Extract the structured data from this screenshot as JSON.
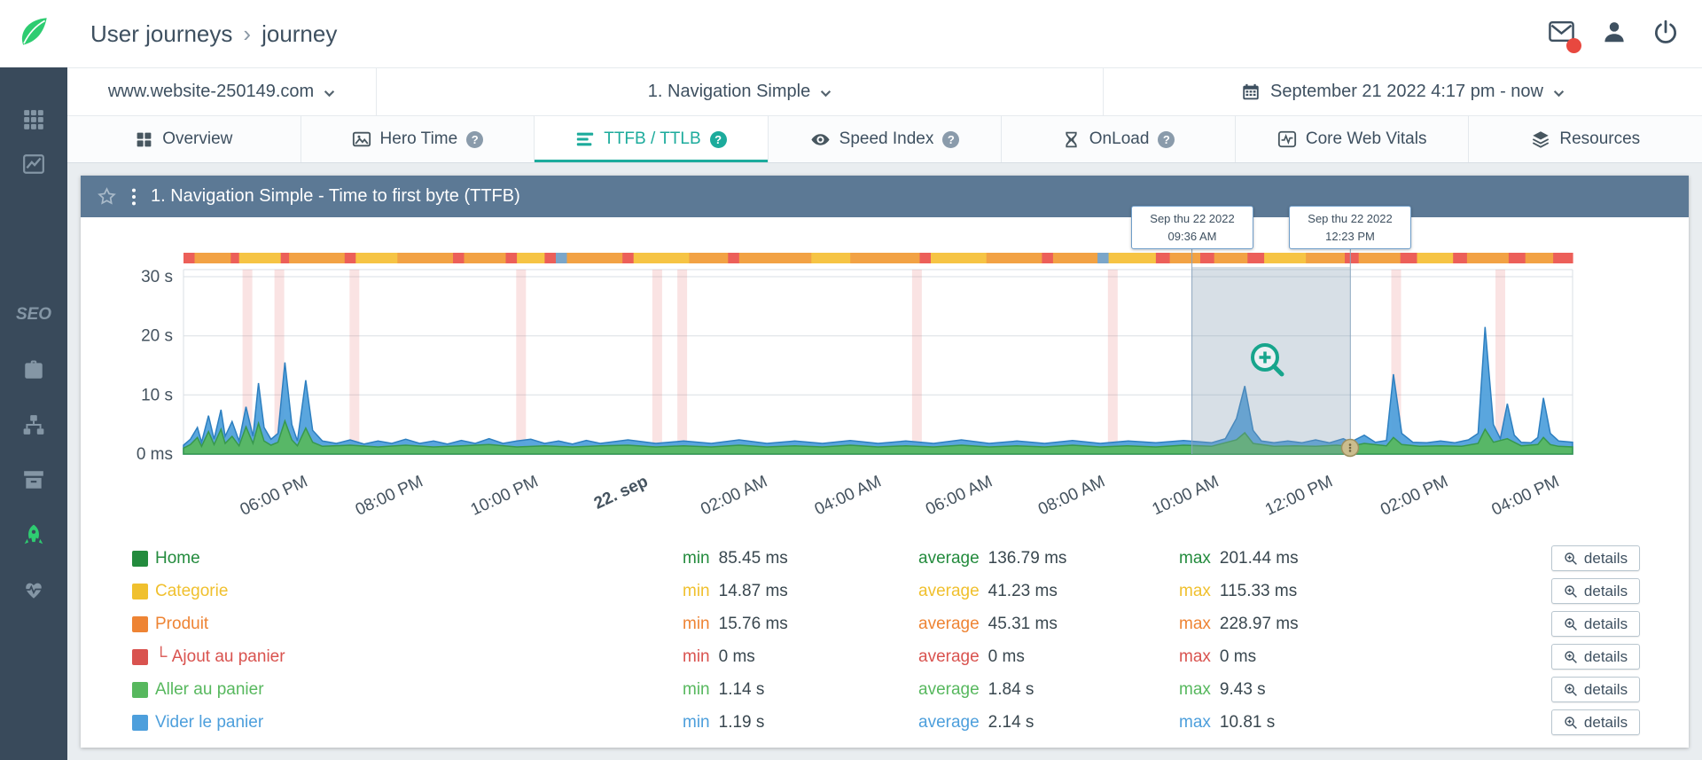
{
  "header": {
    "breadcrumb_parent": "User journeys",
    "breadcrumb_separator": "›",
    "breadcrumb_current": "journey"
  },
  "ui": {
    "help_char": "?"
  },
  "sidebar": {
    "items": [
      {
        "name": "modules",
        "icon": "grid-icon"
      },
      {
        "name": "analytics",
        "icon": "chart-line-icon"
      },
      {
        "name": "seo",
        "label_text": "SEO",
        "gap_before": true
      },
      {
        "name": "toolbox",
        "icon": "briefcase-icon"
      },
      {
        "name": "sitemap",
        "icon": "sitemap-icon"
      },
      {
        "name": "archive",
        "icon": "archive-icon"
      },
      {
        "name": "user-journeys",
        "icon": "rocket-icon",
        "active": true
      },
      {
        "name": "health",
        "icon": "heartbeat-icon"
      }
    ]
  },
  "selectors": {
    "website": "www.website-250149.com",
    "journey": "1. Navigation Simple",
    "daterange": "September 21 2022 4:17 pm - now"
  },
  "tabs": [
    {
      "label": "Overview",
      "icon": "overview-grid-icon"
    },
    {
      "label": "Hero Time",
      "icon": "hero-image-icon",
      "help": true
    },
    {
      "label": "TTFB / TTLB",
      "icon": "ttfb-list-icon",
      "help": true,
      "active": true
    },
    {
      "label": "Speed Index",
      "icon": "speed-eye-icon",
      "help": true
    },
    {
      "label": "OnLoad",
      "icon": "onload-hourglass-icon",
      "help": true
    },
    {
      "label": "Core Web Vitals",
      "icon": "core-web-vitals-icon"
    },
    {
      "label": "Resources",
      "icon": "resources-icon"
    }
  ],
  "panel": {
    "title": "1. Navigation Simple - Time to first byte (TTFB)"
  },
  "chart_data": {
    "type": "area",
    "title": "1. Navigation Simple - Time to first byte (TTFB)",
    "unit": "seconds",
    "ylim": [
      0,
      31
    ],
    "grid": true,
    "y_ticks": [
      {
        "label": "30 s",
        "value": 30
      },
      {
        "label": "20 s",
        "value": 20
      },
      {
        "label": "10 s",
        "value": 10
      },
      {
        "label": "0 ms",
        "value": 0
      }
    ],
    "x_ticks": [
      {
        "label": "06:00 PM",
        "f": 0.085
      },
      {
        "label": "08:00 PM",
        "f": 0.168
      },
      {
        "label": "10:00 PM",
        "f": 0.251
      },
      {
        "label": "22. sep",
        "f": 0.33,
        "bold": true
      },
      {
        "label": "02:00 AM",
        "f": 0.416
      },
      {
        "label": "04:00 AM",
        "f": 0.498
      },
      {
        "label": "06:00 AM",
        "f": 0.578
      },
      {
        "label": "08:00 AM",
        "f": 0.659
      },
      {
        "label": "10:00 AM",
        "f": 0.741
      },
      {
        "label": "12:00 PM",
        "f": 0.823
      },
      {
        "label": "02:00 PM",
        "f": 0.906
      },
      {
        "label": "04:00 PM",
        "f": 0.986
      }
    ],
    "series": [
      {
        "name": "TTLB",
        "color": "#4d9fdc",
        "stroke": "#2d7fc0",
        "points": [
          [
            0,
            1.5
          ],
          [
            0.005,
            2.5
          ],
          [
            0.01,
            4.5
          ],
          [
            0.013,
            2
          ],
          [
            0.018,
            6.5
          ],
          [
            0.022,
            2.5
          ],
          [
            0.027,
            7.5
          ],
          [
            0.03,
            3
          ],
          [
            0.035,
            5.5
          ],
          [
            0.04,
            2.2
          ],
          [
            0.045,
            8
          ],
          [
            0.05,
            3
          ],
          [
            0.054,
            12
          ],
          [
            0.058,
            4.5
          ],
          [
            0.063,
            2.5
          ],
          [
            0.068,
            3.5
          ],
          [
            0.073,
            15.5
          ],
          [
            0.078,
            5
          ],
          [
            0.082,
            2.2
          ],
          [
            0.088,
            12.5
          ],
          [
            0.093,
            4
          ],
          [
            0.1,
            2.2
          ],
          [
            0.11,
            1.8
          ],
          [
            0.12,
            2.4
          ],
          [
            0.13,
            1.7
          ],
          [
            0.14,
            2.2
          ],
          [
            0.15,
            1.8
          ],
          [
            0.16,
            2.5
          ],
          [
            0.17,
            1.8
          ],
          [
            0.18,
            2.2
          ],
          [
            0.19,
            1.7
          ],
          [
            0.2,
            2.3
          ],
          [
            0.21,
            1.8
          ],
          [
            0.22,
            2.6
          ],
          [
            0.23,
            1.8
          ],
          [
            0.24,
            2.2
          ],
          [
            0.25,
            2.5
          ],
          [
            0.26,
            1.8
          ],
          [
            0.27,
            2.2
          ],
          [
            0.28,
            1.7
          ],
          [
            0.29,
            2.3
          ],
          [
            0.3,
            1.8
          ],
          [
            0.32,
            2.4
          ],
          [
            0.34,
            1.8
          ],
          [
            0.36,
            2.2
          ],
          [
            0.38,
            1.8
          ],
          [
            0.4,
            2.4
          ],
          [
            0.42,
            1.8
          ],
          [
            0.44,
            2.2
          ],
          [
            0.46,
            1.8
          ],
          [
            0.48,
            2.3
          ],
          [
            0.5,
            1.8
          ],
          [
            0.52,
            2.2
          ],
          [
            0.54,
            1.8
          ],
          [
            0.56,
            2.4
          ],
          [
            0.58,
            1.8
          ],
          [
            0.6,
            2.2
          ],
          [
            0.62,
            1.8
          ],
          [
            0.64,
            2.3
          ],
          [
            0.66,
            1.8
          ],
          [
            0.68,
            2.2
          ],
          [
            0.7,
            1.9
          ],
          [
            0.72,
            2.3
          ],
          [
            0.74,
            1.9
          ],
          [
            0.75,
            2.6
          ],
          [
            0.758,
            6
          ],
          [
            0.764,
            11.5
          ],
          [
            0.77,
            4
          ],
          [
            0.776,
            2.2
          ],
          [
            0.785,
            1.9
          ],
          [
            0.795,
            2.2
          ],
          [
            0.805,
            1.9
          ],
          [
            0.815,
            2.4
          ],
          [
            0.825,
            1.9
          ],
          [
            0.835,
            2.6
          ],
          [
            0.84,
            2
          ],
          [
            0.85,
            3.2
          ],
          [
            0.858,
            2
          ],
          [
            0.866,
            2.3
          ],
          [
            0.871,
            13.5
          ],
          [
            0.877,
            3.5
          ],
          [
            0.885,
            2
          ],
          [
            0.895,
            1.9
          ],
          [
            0.905,
            2.2
          ],
          [
            0.915,
            1.9
          ],
          [
            0.925,
            2.4
          ],
          [
            0.932,
            3.5
          ],
          [
            0.937,
            21.5
          ],
          [
            0.943,
            5
          ],
          [
            0.948,
            2.6
          ],
          [
            0.953,
            8.5
          ],
          [
            0.958,
            3.2
          ],
          [
            0.963,
            2
          ],
          [
            0.97,
            1.9
          ],
          [
            0.975,
            2.8
          ],
          [
            0.979,
            9.5
          ],
          [
            0.984,
            3.5
          ],
          [
            0.99,
            2.2
          ],
          [
            1,
            2
          ]
        ]
      },
      {
        "name": "TTFB",
        "color": "#58b85e",
        "stroke": "#37984d",
        "points": [
          [
            0,
            1
          ],
          [
            0.005,
            1.6
          ],
          [
            0.01,
            2.8
          ],
          [
            0.013,
            1.3
          ],
          [
            0.018,
            3.8
          ],
          [
            0.022,
            1.6
          ],
          [
            0.027,
            4.2
          ],
          [
            0.03,
            1.8
          ],
          [
            0.035,
            3
          ],
          [
            0.04,
            1.4
          ],
          [
            0.045,
            4.6
          ],
          [
            0.05,
            1.8
          ],
          [
            0.054,
            5.2
          ],
          [
            0.058,
            2.2
          ],
          [
            0.063,
            1.5
          ],
          [
            0.068,
            2
          ],
          [
            0.073,
            5.6
          ],
          [
            0.078,
            2.4
          ],
          [
            0.082,
            1.4
          ],
          [
            0.088,
            4.4
          ],
          [
            0.093,
            2
          ],
          [
            0.1,
            1.3
          ],
          [
            0.12,
            1.5
          ],
          [
            0.14,
            1.2
          ],
          [
            0.16,
            1.5
          ],
          [
            0.18,
            1.2
          ],
          [
            0.2,
            1.4
          ],
          [
            0.22,
            1.6
          ],
          [
            0.24,
            1.2
          ],
          [
            0.26,
            1.4
          ],
          [
            0.28,
            1.2
          ],
          [
            0.3,
            1.4
          ],
          [
            0.32,
            1.5
          ],
          [
            0.34,
            1.2
          ],
          [
            0.36,
            1.4
          ],
          [
            0.38,
            1.2
          ],
          [
            0.4,
            1.5
          ],
          [
            0.42,
            1.2
          ],
          [
            0.44,
            1.4
          ],
          [
            0.46,
            1.2
          ],
          [
            0.48,
            1.5
          ],
          [
            0.5,
            1.2
          ],
          [
            0.52,
            1.4
          ],
          [
            0.54,
            1.2
          ],
          [
            0.56,
            1.5
          ],
          [
            0.58,
            1.2
          ],
          [
            0.6,
            1.4
          ],
          [
            0.62,
            1.2
          ],
          [
            0.64,
            1.5
          ],
          [
            0.66,
            1.2
          ],
          [
            0.68,
            1.4
          ],
          [
            0.7,
            1.2
          ],
          [
            0.72,
            1.5
          ],
          [
            0.74,
            1.3
          ],
          [
            0.758,
            2.4
          ],
          [
            0.764,
            3.6
          ],
          [
            0.77,
            1.8
          ],
          [
            0.785,
            1.3
          ],
          [
            0.8,
            1.4
          ],
          [
            0.815,
            1.3
          ],
          [
            0.83,
            1.5
          ],
          [
            0.84,
            1.3
          ],
          [
            0.85,
            1.8
          ],
          [
            0.866,
            1.4
          ],
          [
            0.871,
            2.8
          ],
          [
            0.877,
            1.6
          ],
          [
            0.89,
            1.3
          ],
          [
            0.905,
            1.4
          ],
          [
            0.92,
            1.3
          ],
          [
            0.932,
            1.8
          ],
          [
            0.937,
            4.2
          ],
          [
            0.943,
            2
          ],
          [
            0.953,
            2.6
          ],
          [
            0.963,
            1.4
          ],
          [
            0.975,
            1.6
          ],
          [
            0.979,
            2.8
          ],
          [
            0.984,
            1.6
          ],
          [
            0.99,
            1.3
          ],
          [
            1,
            1.2
          ]
        ]
      }
    ],
    "incident_bands": {
      "color": "#e57373",
      "opacity": 0.2,
      "width": 0.007,
      "centers": [
        0.046,
        0.069,
        0.123,
        0.243,
        0.341,
        0.359,
        0.528,
        0.669,
        0.873,
        0.948
      ]
    },
    "status_strip": {
      "colors": {
        "orange": "#f2a244",
        "yellow": "#f6c444",
        "red": "#ec5f59",
        "blue": "#7ba6c9"
      },
      "segments": [
        [
          0.008,
          "red"
        ],
        [
          0.026,
          "orange"
        ],
        [
          0.006,
          "red"
        ],
        [
          0.03,
          "yellow"
        ],
        [
          0.006,
          "red"
        ],
        [
          0.04,
          "orange"
        ],
        [
          0.008,
          "red"
        ],
        [
          0.03,
          "yellow"
        ],
        [
          0.04,
          "orange"
        ],
        [
          0.008,
          "red"
        ],
        [
          0.03,
          "orange"
        ],
        [
          0.008,
          "red"
        ],
        [
          0.02,
          "yellow"
        ],
        [
          0.008,
          "red"
        ],
        [
          0.008,
          "blue"
        ],
        [
          0.04,
          "orange"
        ],
        [
          0.008,
          "red"
        ],
        [
          0.04,
          "yellow"
        ],
        [
          0.028,
          "orange"
        ],
        [
          0.008,
          "red"
        ],
        [
          0.052,
          "orange"
        ],
        [
          0.028,
          "yellow"
        ],
        [
          0.05,
          "orange"
        ],
        [
          0.008,
          "red"
        ],
        [
          0.04,
          "yellow"
        ],
        [
          0.04,
          "orange"
        ],
        [
          0.008,
          "red"
        ],
        [
          0.032,
          "orange"
        ],
        [
          0.008,
          "blue"
        ],
        [
          0.034,
          "yellow"
        ],
        [
          0.01,
          "red"
        ],
        [
          0.022,
          "orange"
        ],
        [
          0.01,
          "red"
        ],
        [
          0.024,
          "orange"
        ],
        [
          0.012,
          "red"
        ],
        [
          0.03,
          "yellow"
        ],
        [
          0.028,
          "orange"
        ],
        [
          0.01,
          "red"
        ],
        [
          0.03,
          "orange"
        ],
        [
          0.012,
          "red"
        ],
        [
          0.026,
          "yellow"
        ],
        [
          0.01,
          "red"
        ],
        [
          0.03,
          "orange"
        ],
        [
          0.012,
          "red"
        ],
        [
          0.02,
          "orange"
        ],
        [
          0.014,
          "red"
        ]
      ]
    },
    "selection": {
      "x0": 0.726,
      "x1": 0.84
    },
    "tooltips": [
      {
        "line1": "Sep thu 22 2022",
        "line2": "09:36 AM"
      },
      {
        "line1": "Sep thu 22 2022",
        "line2": "12:23 PM"
      }
    ]
  },
  "legend": {
    "labels": {
      "min": "min",
      "average": "average",
      "max": "max",
      "details": "details"
    },
    "rows": [
      {
        "label": "Home",
        "color": "#238b3d",
        "min": "85.45 ms",
        "average": "136.79 ms",
        "max": "201.44 ms"
      },
      {
        "label": "Categorie",
        "color": "#f0c02e",
        "min": "14.87 ms",
        "average": "41.23 ms",
        "max": "115.33 ms"
      },
      {
        "label": "Produit",
        "color": "#ee8434",
        "min": "15.76 ms",
        "average": "45.31 ms",
        "max": "228.97 ms"
      },
      {
        "label": "Ajout au panier",
        "color": "#d9534f",
        "child": true,
        "min": "0 ms",
        "average": "0 ms",
        "max": "0 ms"
      },
      {
        "label": "Aller au panier",
        "color": "#57b85e",
        "min": "1.14 s",
        "average": "1.84 s",
        "max": "9.43 s"
      },
      {
        "label": "Vider le panier",
        "color": "#4d9fdc",
        "min": "1.19 s",
        "average": "2.14 s",
        "max": "10.81 s"
      }
    ]
  },
  "theme": {
    "accent_teal": "#1cab9c",
    "sidebar_bg": "#394a5b",
    "panel_header_bg": "#5c7995",
    "logo_green": "#2ecc71",
    "notification_red": "#e8483f"
  }
}
